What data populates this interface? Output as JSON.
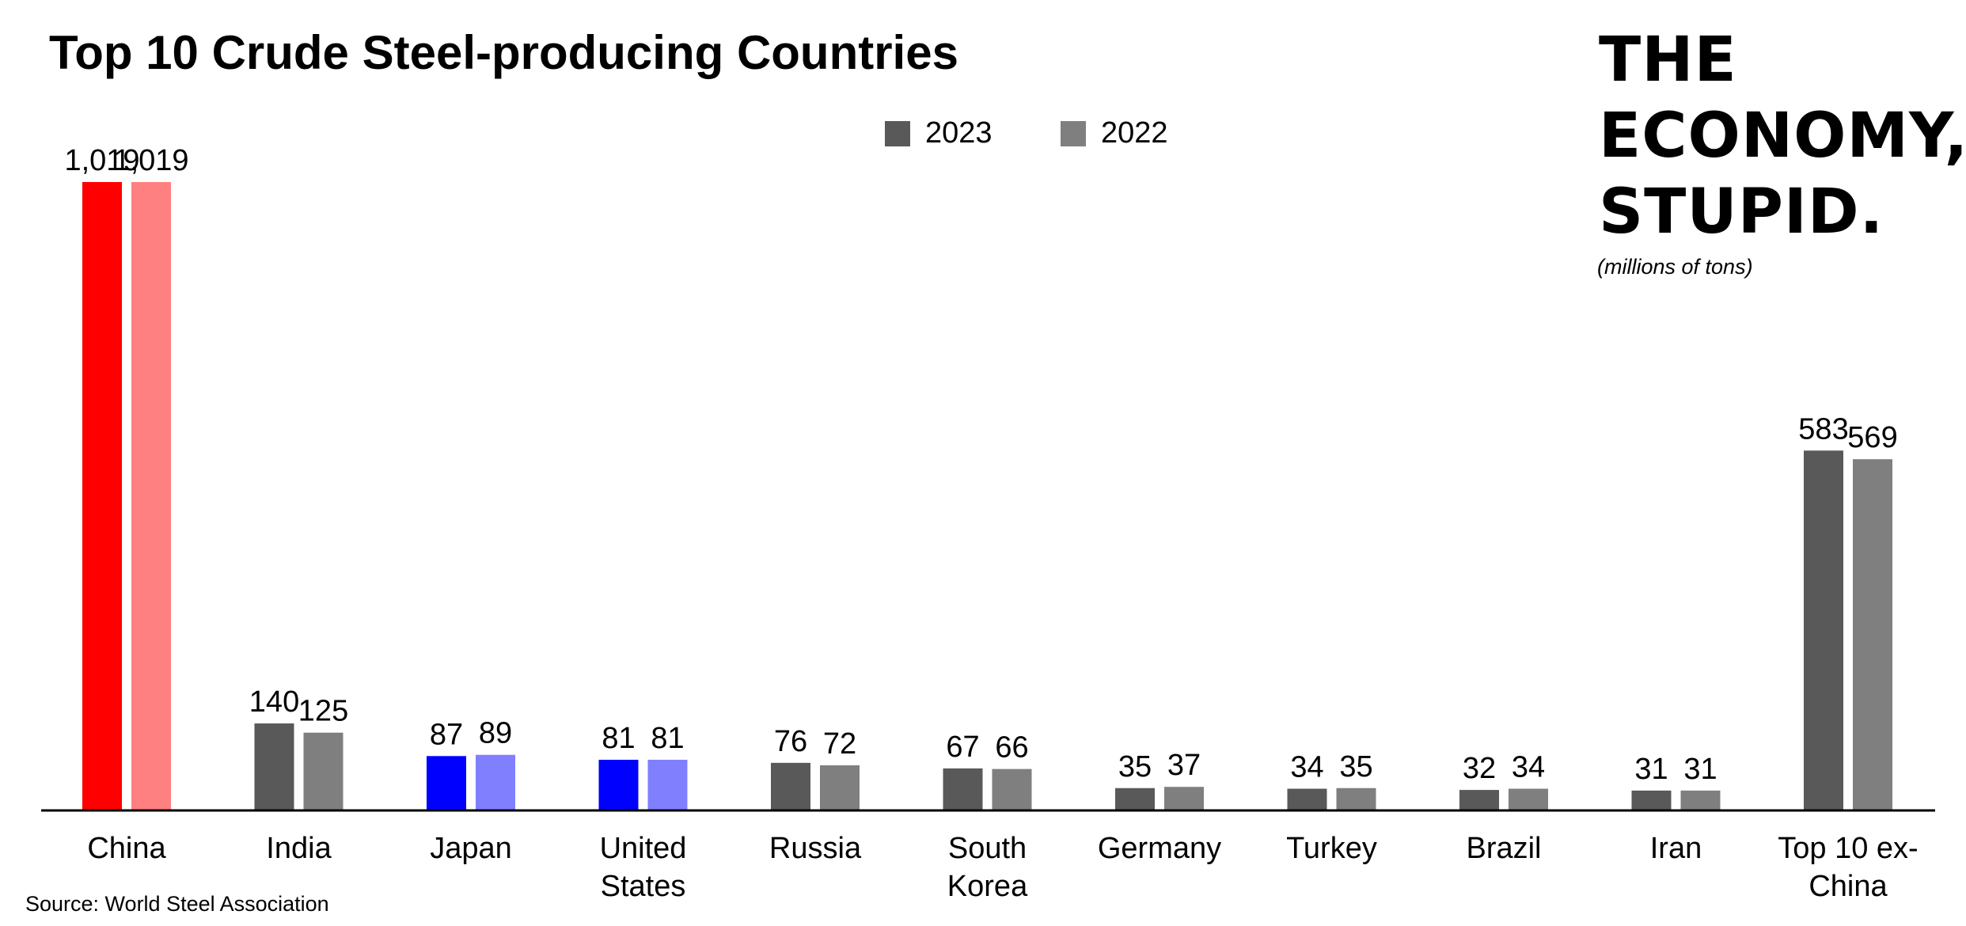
{
  "title": "Top 10 Crude Steel-producing Countries",
  "brand": [
    "THE",
    "ECONOMY,",
    "STUPID."
  ],
  "units_note": "(millions of tons)",
  "source": "Source: World Steel Association",
  "colors": {
    "series_2023": "#595959",
    "series_2022": "#7f7f7f",
    "china_2023": "#ff0000",
    "china_2022": "#ff8080",
    "us_japan_2023": "#0000ff",
    "us_japan_2022": "#8080ff"
  },
  "legend": [
    {
      "label": "2023",
      "color": "#595959"
    },
    {
      "label": "2022",
      "color": "#7f7f7f"
    }
  ],
  "chart_data": {
    "type": "bar",
    "categories": [
      "China",
      "India",
      "Japan",
      "United States",
      "Russia",
      "South Korea",
      "Germany",
      "Turkey",
      "Brazil",
      "Iran",
      "Top 10 ex-China"
    ],
    "category_lines": [
      [
        "China"
      ],
      [
        "India"
      ],
      [
        "Japan"
      ],
      [
        "United",
        "States"
      ],
      [
        "Russia"
      ],
      [
        "South",
        "Korea"
      ],
      [
        "Germany"
      ],
      [
        "Turkey"
      ],
      [
        "Brazil"
      ],
      [
        "Iran"
      ],
      [
        "Top 10 ex-",
        "China"
      ]
    ],
    "series": [
      {
        "name": "2023",
        "values": [
          1019,
          140,
          87,
          81,
          76,
          67,
          35,
          34,
          32,
          31,
          583
        ],
        "labels": [
          "1,019",
          "140",
          "87",
          "81",
          "76",
          "67",
          "35",
          "34",
          "32",
          "31",
          "583"
        ]
      },
      {
        "name": "2022",
        "values": [
          1019,
          125,
          89,
          81,
          72,
          66,
          37,
          35,
          34,
          31,
          569
        ],
        "labels": [
          "1,019",
          "125",
          "89",
          "81",
          "72",
          "66",
          "37",
          "35",
          "34",
          "31",
          "569"
        ]
      }
    ],
    "bar_colors": [
      [
        "#ff0000",
        "#595959",
        "#0000ff",
        "#0000ff",
        "#595959",
        "#595959",
        "#595959",
        "#595959",
        "#595959",
        "#595959",
        "#595959"
      ],
      [
        "#ff8080",
        "#7f7f7f",
        "#8080ff",
        "#8080ff",
        "#7f7f7f",
        "#7f7f7f",
        "#7f7f7f",
        "#7f7f7f",
        "#7f7f7f",
        "#7f7f7f",
        "#7f7f7f"
      ]
    ],
    "ylim": [
      0,
      1019
    ],
    "grid": false,
    "y_axis_visible": false,
    "legend_position": "top-center"
  }
}
